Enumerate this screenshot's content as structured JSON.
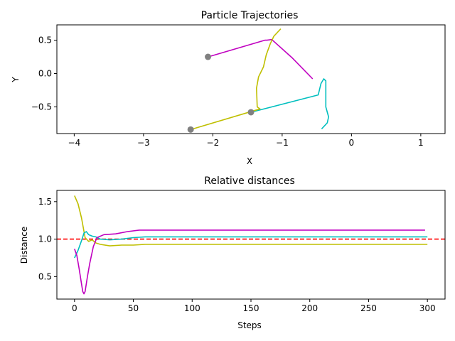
{
  "chart_data": [
    {
      "type": "line",
      "title": "Particle Trajectories",
      "xlabel": "X",
      "ylabel": "Y",
      "xlim": [
        -4.25,
        1.35
      ],
      "ylim": [
        -0.9,
        0.73
      ],
      "xticks": [
        -4,
        -3,
        -2,
        -1,
        0,
        1
      ],
      "xtick_labels": [
        "−4",
        "−3",
        "−2",
        "−1",
        "0",
        "1"
      ],
      "yticks": [
        -0.5,
        0.0,
        0.5
      ],
      "ytick_labels": [
        "−0.5",
        "0.0",
        "0.5"
      ],
      "series": [
        {
          "color": "#c000c0",
          "points": [
            [
              -2.07,
              0.25
            ],
            [
              -1.25,
              0.5
            ],
            [
              -1.22,
              0.5
            ],
            [
              -1.15,
              0.51
            ],
            [
              -0.85,
              0.23
            ],
            [
              -0.56,
              -0.08
            ]
          ]
        },
        {
          "color": "#00bfbf",
          "points": [
            [
              -1.45,
              -0.58
            ],
            [
              -0.48,
              -0.32
            ],
            [
              -0.44,
              -0.15
            ],
            [
              -0.4,
              -0.08
            ],
            [
              -0.37,
              -0.11
            ],
            [
              -0.37,
              -0.5
            ],
            [
              -0.33,
              -0.65
            ],
            [
              -0.35,
              -0.74
            ],
            [
              -0.43,
              -0.83
            ]
          ]
        },
        {
          "color": "#bfbf00",
          "points": [
            [
              -2.32,
              -0.84
            ],
            [
              -1.32,
              -0.53
            ],
            [
              -1.36,
              -0.5
            ],
            [
              -1.37,
              -0.22
            ],
            [
              -1.34,
              -0.05
            ],
            [
              -1.27,
              0.1
            ],
            [
              -1.23,
              0.28
            ],
            [
              -1.17,
              0.45
            ],
            [
              -1.12,
              0.56
            ],
            [
              -1.02,
              0.67
            ]
          ]
        }
      ],
      "markers": {
        "color": "#808080",
        "points": [
          [
            -2.07,
            0.25
          ],
          [
            -1.45,
            -0.58
          ],
          [
            -2.32,
            -0.84
          ]
        ]
      }
    },
    {
      "type": "line",
      "title": "Relative distances",
      "xlabel": "Steps",
      "ylabel": "Distance",
      "xlim": [
        -15,
        315
      ],
      "ylim": [
        0.2,
        1.65
      ],
      "xticks": [
        0,
        50,
        100,
        150,
        200,
        250,
        300
      ],
      "xtick_labels": [
        "0",
        "50",
        "100",
        "150",
        "200",
        "250",
        "300"
      ],
      "yticks": [
        0.5,
        1.0,
        1.5
      ],
      "ytick_labels": [
        "0.5",
        "1.0",
        "1.5"
      ],
      "reference_line": {
        "y": 1.0,
        "color": "#ff0000",
        "style": "dashed"
      },
      "series": [
        {
          "color": "#bfbf00",
          "points": [
            [
              0,
              1.58
            ],
            [
              3,
              1.47
            ],
            [
              6,
              1.28
            ],
            [
              9,
              1.02
            ],
            [
              12,
              0.97
            ],
            [
              15,
              0.99
            ],
            [
              18,
              0.95
            ],
            [
              22,
              0.93
            ],
            [
              30,
              0.91
            ],
            [
              40,
              0.92
            ],
            [
              50,
              0.92
            ],
            [
              60,
              0.93
            ],
            [
              80,
              0.93
            ],
            [
              120,
              0.93
            ],
            [
              200,
              0.93
            ],
            [
              300,
              0.93
            ]
          ]
        },
        {
          "color": "#00bfbf",
          "points": [
            [
              0,
              0.75
            ],
            [
              3,
              0.85
            ],
            [
              6,
              0.98
            ],
            [
              8,
              1.08
            ],
            [
              10,
              1.1
            ],
            [
              12,
              1.06
            ],
            [
              15,
              1.04
            ],
            [
              18,
              1.03
            ],
            [
              22,
              1.0
            ],
            [
              30,
              0.99
            ],
            [
              40,
              1.0
            ],
            [
              50,
              1.02
            ],
            [
              60,
              1.03
            ],
            [
              100,
              1.03
            ],
            [
              200,
              1.03
            ],
            [
              300,
              1.03
            ]
          ]
        },
        {
          "color": "#c000c0",
          "points": [
            [
              0,
              0.87
            ],
            [
              2,
              0.78
            ],
            [
              4,
              0.6
            ],
            [
              6,
              0.4
            ],
            [
              7,
              0.3
            ],
            [
              8,
              0.27
            ],
            [
              9,
              0.3
            ],
            [
              11,
              0.5
            ],
            [
              13,
              0.68
            ],
            [
              16,
              0.9
            ],
            [
              19,
              1.02
            ],
            [
              25,
              1.06
            ],
            [
              35,
              1.07
            ],
            [
              45,
              1.1
            ],
            [
              55,
              1.12
            ],
            [
              100,
              1.12
            ],
            [
              200,
              1.12
            ],
            [
              298,
              1.12
            ]
          ]
        }
      ]
    }
  ]
}
